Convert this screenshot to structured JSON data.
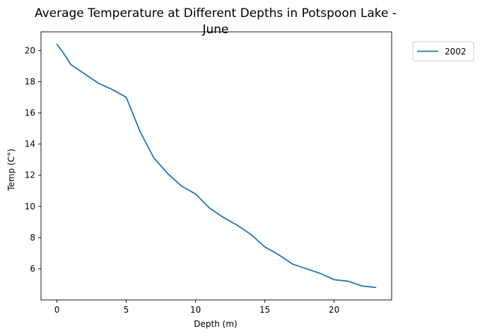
{
  "chart_data": {
    "type": "line",
    "title_line1": "Average Temperature at Different Depths in Potspoon Lake -",
    "title_line2": "June",
    "xlabel": "Depth (m)",
    "ylabel": "Temp (C°)",
    "xlim": [
      -1.15,
      24.15
    ],
    "ylim": [
      4.0,
      21.2
    ],
    "xticks": [
      0,
      5,
      10,
      15,
      20
    ],
    "yticks": [
      6,
      8,
      10,
      12,
      14,
      16,
      18,
      20
    ],
    "legend_position": "outside-top-right",
    "series": [
      {
        "name": "2002",
        "color": "#1f77b4",
        "x": [
          0,
          0.5,
          1,
          2,
          3,
          4,
          5,
          6,
          7,
          8,
          9,
          10,
          11,
          12,
          13,
          14,
          15,
          16,
          17,
          18,
          19,
          20,
          21,
          22,
          23
        ],
        "y": [
          20.4,
          19.8,
          19.1,
          18.5,
          17.9,
          17.5,
          17.0,
          14.8,
          13.1,
          12.1,
          11.3,
          10.8,
          9.9,
          9.3,
          8.8,
          8.2,
          7.4,
          6.9,
          6.3,
          6.0,
          5.7,
          5.3,
          5.2,
          4.9,
          4.8
        ]
      }
    ]
  }
}
